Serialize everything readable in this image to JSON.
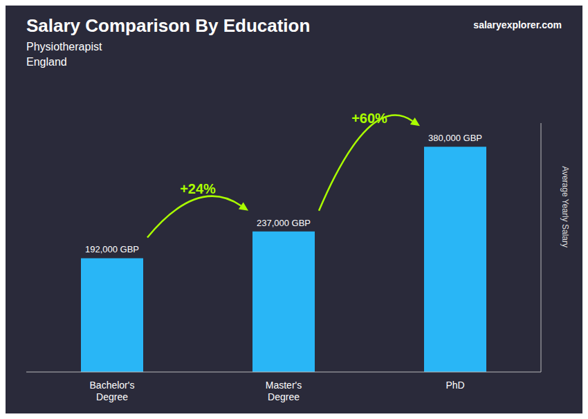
{
  "chart_data": {
    "type": "bar",
    "title": "Salary Comparison By Education",
    "subtitle": [
      "Physiotherapist",
      "England"
    ],
    "categories": [
      "Bachelor's\nDegree",
      "Master's\nDegree",
      "PhD"
    ],
    "values": [
      192000,
      237000,
      380000
    ],
    "value_labels": [
      "192,000 GBP",
      "237,000 GBP",
      "380,000 GBP"
    ],
    "data_labels": true,
    "color": "#29B6F6",
    "ylim": [
      0,
      420000
    ],
    "ylabel": "Average Yearly Salary",
    "tick_labels": "x",
    "grid": false,
    "annotations": [
      {
        "text": "+24%",
        "color": "#aaff00"
      },
      {
        "text": "+60%",
        "color": "#aaff00"
      },
      {
        "text": "salaryexplorer.com"
      }
    ]
  }
}
